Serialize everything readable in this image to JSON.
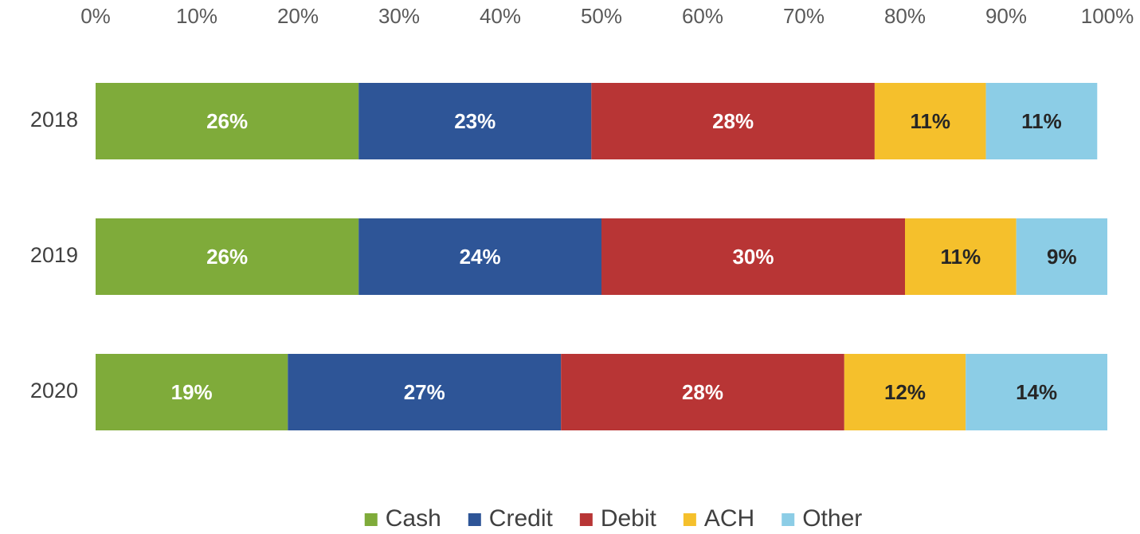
{
  "chart_data": {
    "type": "bar",
    "orientation": "horizontal",
    "stacked": true,
    "categories": [
      "2018",
      "2019",
      "2020"
    ],
    "series": [
      {
        "name": "Cash",
        "color": "#7fab3a",
        "label_color": "#ffffff",
        "values": [
          26,
          26,
          19
        ],
        "value_labels": [
          "26%",
          "26%",
          "19%"
        ]
      },
      {
        "name": "Credit",
        "color": "#2e5597",
        "label_color": "#ffffff",
        "values": [
          23,
          24,
          27
        ],
        "value_labels": [
          "23%",
          "24%",
          "27%"
        ]
      },
      {
        "name": "Debit",
        "color": "#b83535",
        "label_color": "#ffffff",
        "values": [
          28,
          30,
          28
        ],
        "value_labels": [
          "28%",
          "30%",
          "28%"
        ]
      },
      {
        "name": "ACH",
        "color": "#f5c02c",
        "label_color": "#262626",
        "values": [
          11,
          11,
          12
        ],
        "value_labels": [
          "11%",
          "11%",
          "12%"
        ]
      },
      {
        "name": "Other",
        "color": "#8ccde6",
        "label_color": "#262626",
        "values": [
          11,
          9,
          14
        ],
        "value_labels": [
          "11%",
          "9%",
          "14%"
        ]
      }
    ],
    "xlim": [
      0,
      100
    ],
    "xticks": [
      {
        "value": 0,
        "label": "0%"
      },
      {
        "value": 10,
        "label": "10%"
      },
      {
        "value": 20,
        "label": "20%"
      },
      {
        "value": 30,
        "label": "30%"
      },
      {
        "value": 40,
        "label": "40%"
      },
      {
        "value": 50,
        "label": "50%"
      },
      {
        "value": 60,
        "label": "60%"
      },
      {
        "value": 70,
        "label": "70%"
      },
      {
        "value": 80,
        "label": "80%"
      },
      {
        "value": 90,
        "label": "90%"
      },
      {
        "value": 100,
        "label": "100%"
      }
    ],
    "legend": "bottom"
  }
}
